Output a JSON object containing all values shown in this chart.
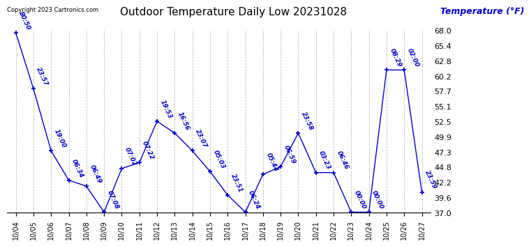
{
  "title": "Outdoor Temperature Daily Low 20231028",
  "ylabel": "Temperature (°F)",
  "copyright": "Copyright 2023 Cartronics.com",
  "background_color": "#ffffff",
  "line_color": "#0000cd",
  "text_color": "#0000cd",
  "grid_color": "#bbbbbb",
  "ylim": [
    37.0,
    68.0
  ],
  "yticks": [
    37.0,
    39.6,
    42.2,
    44.8,
    47.3,
    49.9,
    52.5,
    55.1,
    57.7,
    60.2,
    62.8,
    65.4,
    68.0
  ],
  "dates": [
    "10/04",
    "10/05",
    "10/06",
    "10/07",
    "10/08",
    "10/09",
    "10/10",
    "10/11",
    "10/12",
    "10/13",
    "10/14",
    "10/15",
    "10/16",
    "10/17",
    "10/18",
    "10/19",
    "10/20",
    "10/21",
    "10/22",
    "10/23",
    "10/24",
    "10/25",
    "10/26",
    "10/27"
  ],
  "values": [
    67.5,
    58.0,
    47.5,
    42.5,
    41.5,
    37.1,
    44.5,
    45.5,
    52.5,
    50.5,
    47.5,
    44.0,
    40.0,
    37.1,
    43.5,
    44.8,
    50.5,
    43.8,
    43.8,
    37.1,
    37.1,
    61.2,
    61.2,
    40.5
  ],
  "labels": [
    "80:50",
    "23:57",
    "19:00",
    "06:34",
    "06:49",
    "07:08",
    "07:02",
    "07:22",
    "19:53",
    "16:56",
    "23:07",
    "05:03",
    "23:51",
    "06:24",
    "05:44",
    "06:59",
    "23:58",
    "03:23",
    "06:46",
    "00:00",
    "00:00",
    "08:29",
    "02:00",
    "23:59"
  ],
  "title_fontsize": 11,
  "tick_fontsize": 7,
  "label_fontsize": 6.5,
  "ylabel_fontsize": 9
}
